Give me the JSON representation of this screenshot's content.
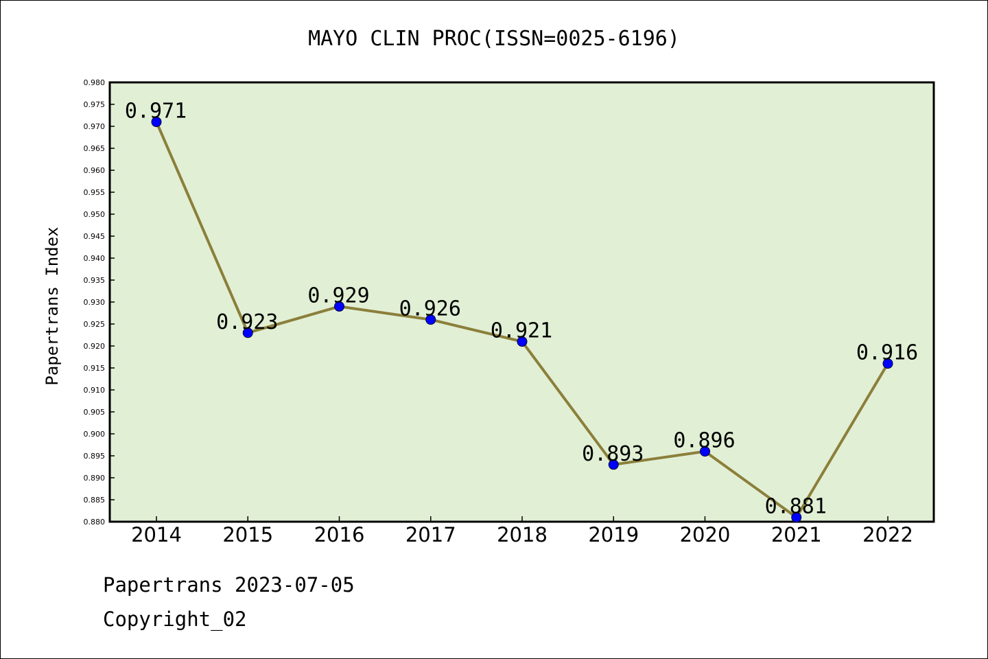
{
  "colors": {
    "plot_background": "#e1efd5",
    "line": "#8b7f3a",
    "marker": "#0000ff",
    "marker_edge": "#000033",
    "axis": "#000000"
  },
  "footer": {
    "line1": "Papertrans 2023-07-05",
    "line2": "Copyright_02"
  },
  "chart_data": {
    "type": "line",
    "title": "MAYO CLIN PROC(ISSN=0025-6196)",
    "xlabel": "",
    "ylabel": "Papertrans Index",
    "categories": [
      "2014",
      "2015",
      "2016",
      "2017",
      "2018",
      "2019",
      "2020",
      "2021",
      "2022"
    ],
    "series": [
      {
        "values": [
          0.971,
          0.923,
          0.929,
          0.926,
          0.921,
          0.893,
          0.896,
          0.881,
          0.916
        ],
        "data_labels": [
          "0.971",
          "0.923",
          "0.929",
          "0.926",
          "0.921",
          "0.893",
          "0.896",
          "0.881",
          "0.916"
        ]
      }
    ],
    "ylim": [
      0.88,
      0.98
    ],
    "y_ticks": [
      "0.880",
      "0.885",
      "0.890",
      "0.895",
      "0.900",
      "0.905",
      "0.910",
      "0.915",
      "0.920",
      "0.925",
      "0.930",
      "0.935",
      "0.940",
      "0.945",
      "0.950",
      "0.955",
      "0.960",
      "0.965",
      "0.970",
      "0.975",
      "0.980"
    ],
    "grid": false,
    "legend": "none"
  }
}
